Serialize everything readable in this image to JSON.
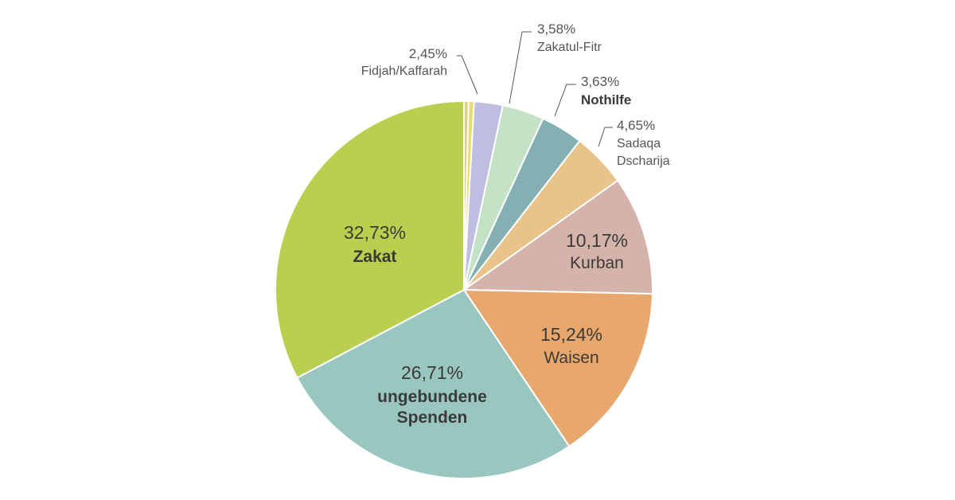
{
  "chart_data": {
    "type": "pie",
    "start_angle_deg": 0,
    "direction": "clockwise",
    "slices": [
      {
        "value": 0.4,
        "percent_label": "",
        "name_lines": [],
        "color": "#d9d08a"
      },
      {
        "value": 0.46,
        "percent_label": "",
        "name_lines": [],
        "color": "#ecd96b"
      },
      {
        "value": 2.45,
        "percent_label": "2,45%",
        "name_lines": [
          "Fidjah/Kaffarah"
        ],
        "color": "#bfbde0"
      },
      {
        "value": 3.58,
        "percent_label": "3,58%",
        "name_lines": [
          "Zakatul-Fitr"
        ],
        "color": "#c4e2c6"
      },
      {
        "value": 3.63,
        "percent_label": "3,63%",
        "name_lines": [
          "Nothilfe"
        ],
        "color": "#84afb3",
        "bold": true
      },
      {
        "value": 4.65,
        "percent_label": "4,65%",
        "name_lines": [
          "Sadaqa",
          "Dscharija"
        ],
        "color": "#e8c48a"
      },
      {
        "value": 10.17,
        "percent_label": "10,17%",
        "name_lines": [
          "Kurban"
        ],
        "color": "#d4b3aa"
      },
      {
        "value": 15.24,
        "percent_label": "15,24%",
        "name_lines": [
          "Waisen"
        ],
        "color": "#e8a86d"
      },
      {
        "value": 26.71,
        "percent_label": "26,71%",
        "name_lines": [
          "ungebundene",
          "Spenden"
        ],
        "color": "#99c7bf",
        "bold": true
      },
      {
        "value": 32.73,
        "percent_label": "32,73%",
        "name_lines": [
          "Zakat"
        ],
        "color": "#b9cf4f",
        "bold": true
      }
    ]
  }
}
